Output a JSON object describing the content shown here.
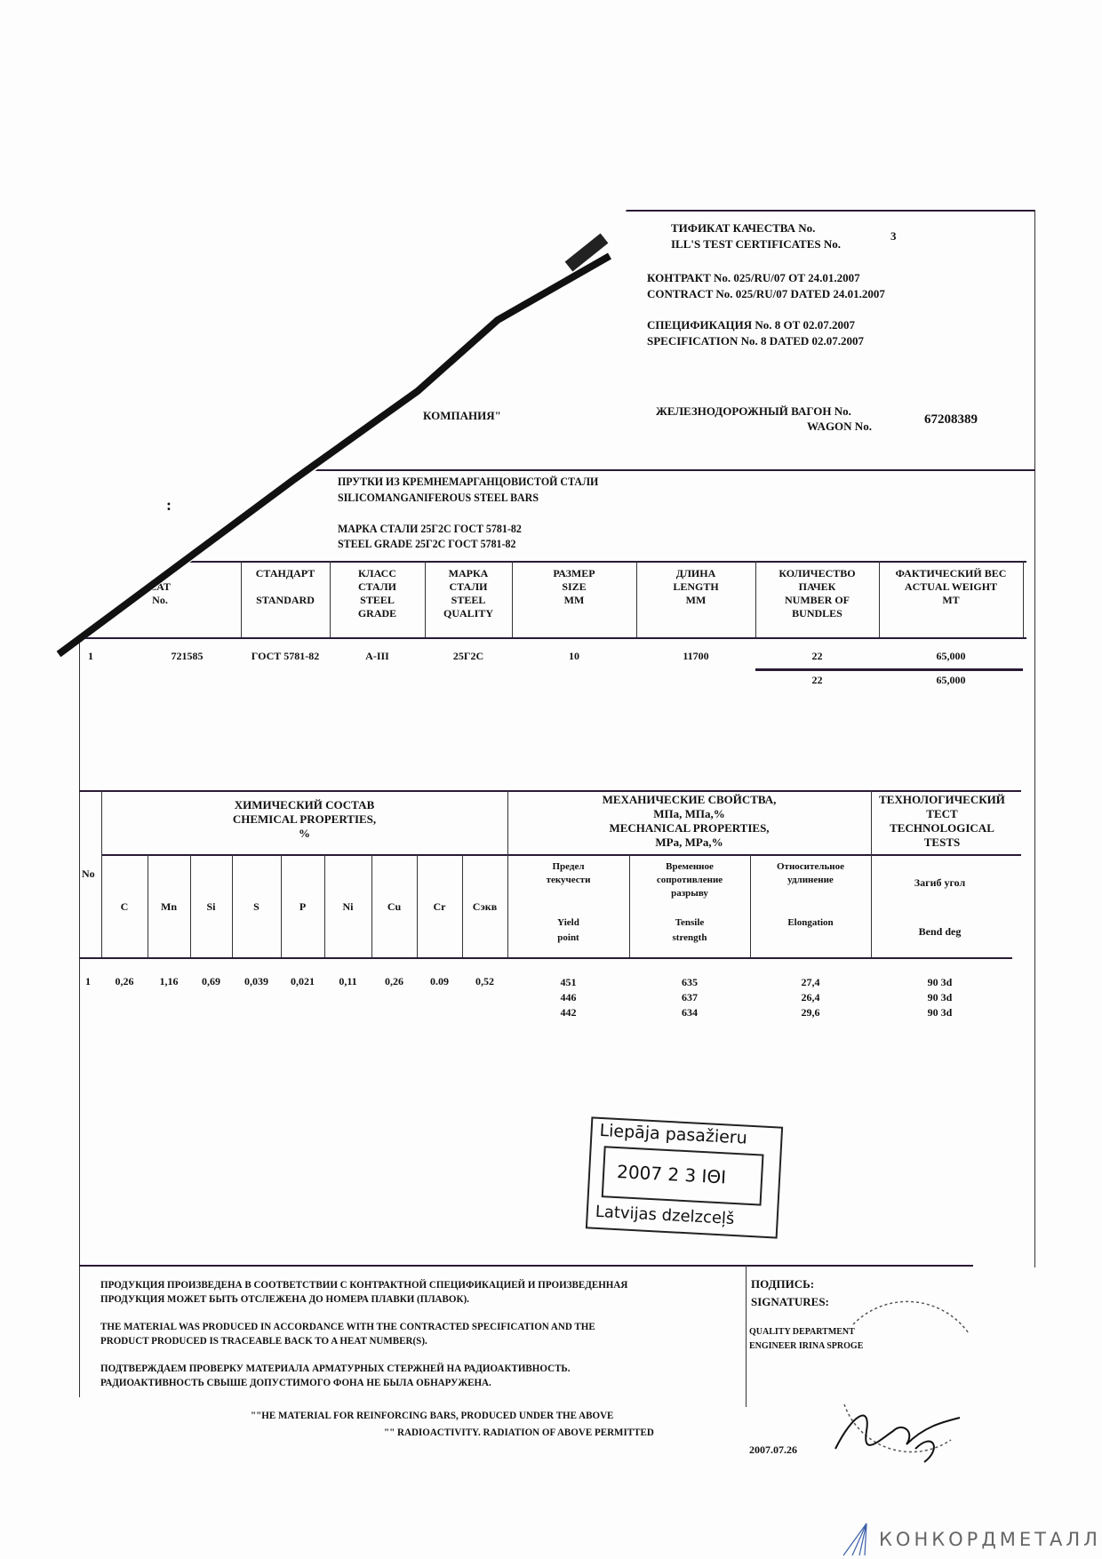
{
  "header": {
    "cert_title_ru": "ТИФИКАТ КАЧЕСТВА  No.",
    "cert_title_en": "ILL'S TEST CERTIFICATES  No.",
    "cert_number": "3",
    "contract_ru": "КОНТРАКТ No. 025/RU/07 ОТ 24.01.2007",
    "contract_en": "CONTRACT No. 025/RU/07 DATED 24.01.2007",
    "spec_ru": "СПЕЦИФИКАЦИЯ No. 8 ОТ 02.07.2007",
    "spec_en": "SPECIFICATION No. 8 DATED 02.07.2007",
    "company_fragment": "КОМПАНИЯ\"",
    "wagon_ru": "ЖЕЛЕЗНОДОРОЖНЫЙ ВАГОН No.",
    "wagon_en": "WAGON No.",
    "wagon_number": "67208389"
  },
  "product": {
    "name_ru": "ПРУТКИ ИЗ КРЕМНЕМАРГАНЦОВИСТОЙ СТАЛИ",
    "name_en": "SILICOMANGANIFEROUS STEEL BARS",
    "grade_ru": "МАРКА СТАЛИ  25Г2С ГОСТ 5781-82",
    "grade_en": "STEEL GRADE 25Г2С ГОСТ 5781-82"
  },
  "shipment_table": {
    "headers": [
      "КА\nEAT\nNo.",
      "СТАНДАРТ\n\nSTANDARD",
      "КЛАСС\nСТАЛИ\nSTEEL\nGRADE",
      "МАРКА\nСТАЛИ\nSTEEL\nQUALITY",
      "РАЗМЕР\nSIZE\nMM",
      "ДЛИНА\nLENGTH\nMM",
      "КОЛИЧЕСТВО\nПАЧЕК\nNUMBER OF\nBUNDLES",
      "ФАКТИЧЕСКИЙ ВЕС\nACTUAL WEIGHT\nMT"
    ],
    "row": {
      "no": "1",
      "heat": "721585",
      "standard": "ГОСТ 5781-82",
      "grade": "А-III",
      "quality": "25Г2С",
      "size": "10",
      "length": "11700",
      "bundles": "22",
      "weight": "65,000"
    },
    "total": {
      "bundles": "22",
      "weight": "65,000"
    }
  },
  "properties_table": {
    "no_label": "No",
    "chem_title": "ХИМИЧЕСКИЙ СОСТАВ\nCHEMICAL PROPERTIES,\n%",
    "mech_title": "МЕХАНИЧЕСКИЕ СВОЙСТВА,\nМПа, МПа,%\nMECHANICAL PROPERTIES,\nMPa, MPa,%",
    "tech_title": "ТЕХНОЛОГИЧЕСКИЙ\nТЕСТ\nTECHNOLOGICAL\nTESTS",
    "elements": [
      "C",
      "Mn",
      "Si",
      "S",
      "P",
      "Ni",
      "Cu",
      "Cr",
      "Сэкв"
    ],
    "mech_columns": [
      {
        "ru": "Предел\nтекучести",
        "en": "Yield\npoint"
      },
      {
        "ru": "Временное\nсопротивление\nразрыву",
        "en": "Tensile\nstrength"
      },
      {
        "ru": "Относительное\nудлинение",
        "en": "Elongation"
      }
    ],
    "tech_column": {
      "ru": "Загиб  угол",
      "en": "Bend   deg"
    },
    "row_no": "1",
    "chem_values": [
      "0,26",
      "1,16",
      "0,69",
      "0,039",
      "0,021",
      "0,11",
      "0,26",
      "0.09",
      "0,52"
    ],
    "yield": [
      "451",
      "446",
      "442"
    ],
    "tensile": [
      "635",
      "637",
      "634"
    ],
    "elongation": [
      "27,4",
      "26,4",
      "29,6"
    ],
    "bend": [
      "90  3d",
      "90  3d",
      "90  3d"
    ]
  },
  "stamp": {
    "top": "Liepāja pasažieru",
    "date": "2007 2 3  ΙΘΙ",
    "bottom": "Latvijas dzelzceļš"
  },
  "footer": {
    "para1_ru": "ПРОДУКЦИЯ ПРОИЗВЕДЕНА В СООТВЕТСТВИИ С КОНТРАКТНОЙ СПЕЦИФИКАЦИЕЙ И ПРОИЗВЕДЕННАЯ\nПРОДУКЦИЯ МОЖЕТ БЫТЬ ОТСЛЕЖЕНА ДО НОМЕРА ПЛАВКИ (ПЛАВОК).",
    "para1_en": "THE MATERIAL WAS PRODUCED IN ACCORDANCE WITH THE CONTRACTED SPECIFICATION AND THE\nPRODUCT PRODUCED IS TRACEABLE BACK TO A HEAT NUMBER(S).",
    "para2_ru": "ПОДТВЕРЖДАЕМ ПРОВЕРКУ МАТЕРИАЛА АРМАТУРНЫХ СТЕРЖНЕЙ НА РАДИОАКТИВНОСТЬ.\nРАДИОАКТИВНОСТЬ СВЫШЕ ДОПУСТИМОГО ФОНА НЕ БЫЛА ОБНАРУЖЕНА.",
    "para2_en_line1": "\"\"HE MATERIAL FOR REINFORCING BARS, PRODUCED UNDER THE ABOVE",
    "para2_en_line2": "\"\" RADIOACTIVITY.  RADIATION OF ABOVE PERMITTED",
    "signature_ru": "ПОДПИСЬ:",
    "signature_en": "SIGNATURES:",
    "signer_dept": "QUALITY DEPARTMENT",
    "signer_name": "ENGINEER  IRINA SPROGE",
    "sign_date": "2007.07.26"
  },
  "watermark": {
    "logo_text": "КОНКОРДМЕТАЛЛ",
    "logo_color": "#3a5fa8",
    "text_color": "#666666"
  }
}
